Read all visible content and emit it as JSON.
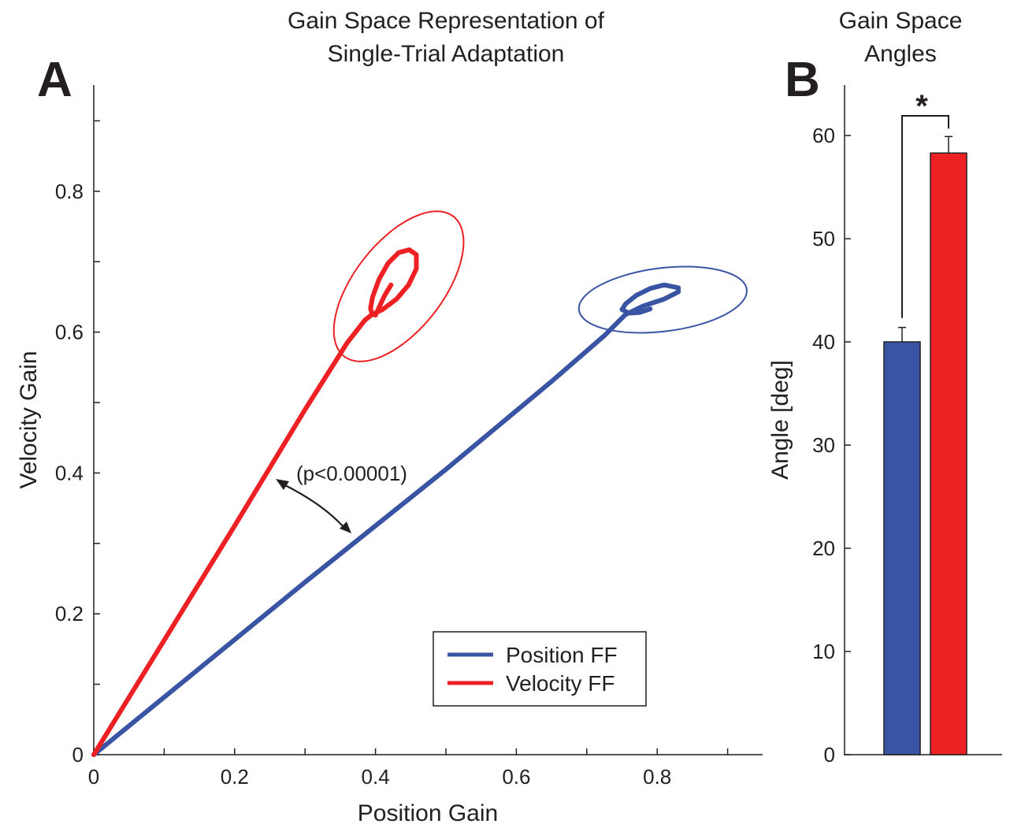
{
  "figure": {
    "panel_a_letter": "A",
    "panel_b_letter": "B"
  },
  "colors": {
    "position_ff": "#3a54a4",
    "velocity_ff": "#ed2024",
    "axis": "#231f20"
  },
  "chart_data": [
    {
      "type": "line",
      "title_lines": [
        "Gain Space Representation of",
        "Single-Trial Adaptation"
      ],
      "xlabel": "Position Gain",
      "ylabel": "Velocity Gain",
      "xlim": [
        0,
        0.95
      ],
      "ylim": [
        0,
        0.95
      ],
      "xticks": [
        0,
        0.2,
        0.4,
        0.6,
        0.8
      ],
      "xtick_labels": [
        "0",
        "0.2",
        "0.4",
        "0.6",
        "0.8"
      ],
      "xminor_ticks": [
        0.1,
        0.3,
        0.5,
        0.7,
        0.9
      ],
      "yticks": [
        0,
        0.2,
        0.4,
        0.6,
        0.8
      ],
      "ytick_labels": [
        "0",
        "0.2",
        "0.4",
        "0.6",
        "0.8"
      ],
      "yminor_ticks": [
        0.1,
        0.3,
        0.5,
        0.7,
        0.9
      ],
      "grid": false,
      "legend_position": "bottom-right",
      "annotation": "(p<0.00001)",
      "series": [
        {
          "name": "Position FF",
          "color": "#3a54a4",
          "points": [
            [
              0,
              0
            ],
            [
              0.3,
              0.245
            ],
            [
              0.5,
              0.405
            ],
            [
              0.65,
              0.53
            ],
            [
              0.725,
              0.595
            ],
            [
              0.755,
              0.625
            ],
            [
              0.78,
              0.637
            ],
            [
              0.81,
              0.647
            ],
            [
              0.83,
              0.657
            ],
            [
              0.83,
              0.663
            ],
            [
              0.81,
              0.667
            ],
            [
              0.79,
              0.662
            ],
            [
              0.77,
              0.652
            ],
            [
              0.755,
              0.64
            ],
            [
              0.75,
              0.632
            ],
            [
              0.76,
              0.627
            ],
            [
              0.775,
              0.628
            ],
            [
              0.79,
              0.633
            ]
          ],
          "ellipse": {
            "center": [
              0.808,
              0.646
            ],
            "semi_axes": [
              0.12,
              0.045
            ],
            "angle_deg": 7
          }
        },
        {
          "name": "Velocity FF",
          "color": "#ed2024",
          "points": [
            [
              0,
              0
            ],
            [
              0.2,
              0.325
            ],
            [
              0.3,
              0.49
            ],
            [
              0.36,
              0.585
            ],
            [
              0.385,
              0.617
            ],
            [
              0.395,
              0.625
            ],
            [
              0.41,
              0.632
            ],
            [
              0.43,
              0.647
            ],
            [
              0.447,
              0.667
            ],
            [
              0.458,
              0.69
            ],
            [
              0.458,
              0.71
            ],
            [
              0.448,
              0.717
            ],
            [
              0.433,
              0.713
            ],
            [
              0.418,
              0.698
            ],
            [
              0.405,
              0.675
            ],
            [
              0.396,
              0.65
            ],
            [
              0.393,
              0.634
            ],
            [
              0.395,
              0.626
            ],
            [
              0.4,
              0.624
            ],
            [
              0.413,
              0.652
            ],
            [
              0.422,
              0.667
            ]
          ],
          "ellipse": {
            "center": [
              0.433,
              0.665
            ],
            "semi_axes": [
              0.126,
              0.063
            ],
            "angle_deg": 52
          }
        }
      ]
    },
    {
      "type": "bar",
      "title_lines": [
        "Gain Space",
        "Angles"
      ],
      "xlabel": "",
      "ylabel": "Angle [deg]",
      "ylim": [
        0,
        65
      ],
      "yticks": [
        0,
        10,
        20,
        30,
        40,
        50,
        60
      ],
      "ytick_labels": [
        "0",
        "10",
        "20",
        "30",
        "40",
        "50",
        "60"
      ],
      "grid": false,
      "significance_label": "*",
      "bars": [
        {
          "series": "Position FF",
          "value": 40.0,
          "error": 1.4,
          "color": "#3a54a4"
        },
        {
          "series": "Velocity FF",
          "value": 58.3,
          "error": 1.6,
          "color": "#ed2024"
        }
      ]
    }
  ]
}
